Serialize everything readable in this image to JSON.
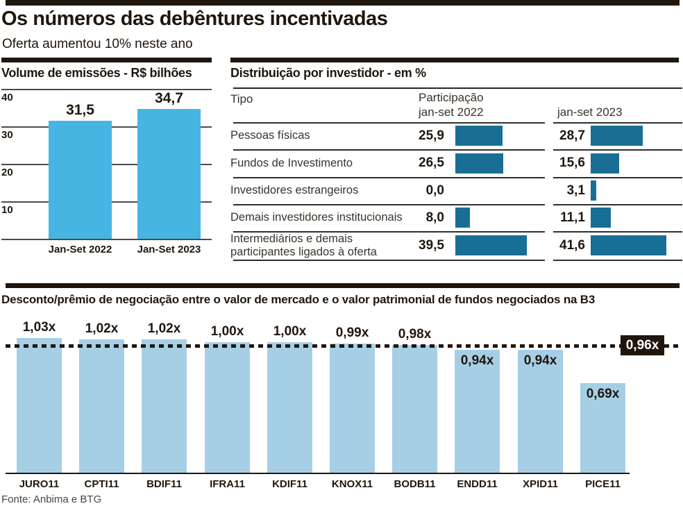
{
  "colors": {
    "ink": "#20160d",
    "volume_bar": "#47b5e2",
    "table_bar": "#186e94",
    "discount_bar": "#a6cfe6",
    "grid": "#4b4b4b",
    "footer_text": "#4a443e"
  },
  "header": {
    "title": "Os números das debêntures incentivadas",
    "subtitle": "Oferta aumentou 10% neste ano"
  },
  "footer": {
    "source": "Fonte: Anbima e BTG"
  },
  "chart_data": [
    {
      "type": "bar",
      "title": "Volume de emissões - R$ bilhões",
      "categories": [
        "Jan-Set 2022",
        "Jan-Set 2023"
      ],
      "values": [
        31.5,
        34.7
      ],
      "value_labels": [
        "31,5",
        "34,7"
      ],
      "ylim": [
        0,
        40
      ],
      "yticks": [
        40,
        30,
        20,
        10
      ],
      "grid": true,
      "legend": "none",
      "bar_color": "#47b5e2"
    },
    {
      "type": "table",
      "title": "Distribuição por investidor - em %",
      "columns": [
        {
          "label": "Tipo"
        },
        {
          "label": "Participação\njan-set 2022"
        },
        {
          "label": "jan-set 2023"
        }
      ],
      "rows": [
        {
          "label": "Pessoas físicas",
          "v2022": 25.9,
          "v2023": 28.7
        },
        {
          "label": "Fundos de Investimento",
          "v2022": 26.5,
          "v2023": 15.6
        },
        {
          "label": "Investidores estrangeiros",
          "v2022": 0.0,
          "v2023": 3.1
        },
        {
          "label": "Demais investidores institucionais",
          "v2022": 8.0,
          "v2023": 11.1
        },
        {
          "label": "Intermediários e demais\nparticipantes ligados à oferta",
          "v2022": 39.5,
          "v2023": 41.6
        }
      ],
      "unit": "%",
      "bar_color": "#186e94"
    },
    {
      "type": "bar",
      "title": "Desconto/prêmio de negociação entre o valor de mercado e o valor patrimonial de fundos negociados na B3",
      "categories": [
        "JURO11",
        "CPTI11",
        "BDIF11",
        "IFRA11",
        "KDIF11",
        "KNOX11",
        "BODB11",
        "ENDD11",
        "XPID11",
        "PICE11"
      ],
      "values": [
        1.03,
        1.02,
        1.02,
        1.0,
        1.0,
        0.99,
        0.98,
        0.94,
        0.94,
        0.69
      ],
      "value_labels": [
        "1,03x",
        "1,02x",
        "1,02x",
        "1,00x",
        "1,00x",
        "0,99x",
        "0,98x",
        "0,94x",
        "0,94x",
        "0,69x"
      ],
      "ylim": [
        0,
        1.03
      ],
      "grid": false,
      "legend": "none",
      "reference_line": {
        "value": 0.96,
        "label": "0,96x",
        "style": "dashed"
      },
      "bar_color": "#a6cfe6"
    }
  ]
}
